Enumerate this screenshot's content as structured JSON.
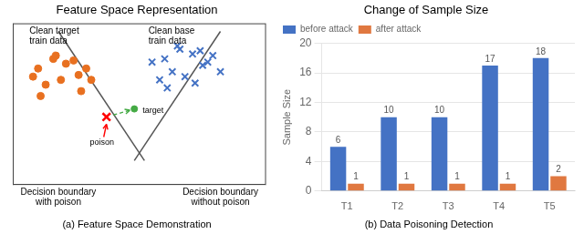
{
  "chart_data": [
    {
      "type": "scatter",
      "title": "Feature Space Representation",
      "caption": "(a) Feature Space Demonstration",
      "xlim": [
        0,
        1
      ],
      "ylim": [
        0,
        1
      ],
      "tick_labels": false,
      "grid": false,
      "series": [
        {
          "name": "Clean target\ntrain data",
          "type": "scatter",
          "marker": "circle",
          "color": "#E87020",
          "x": [
            0.1,
            0.16,
            0.21,
            0.26,
            0.13,
            0.19,
            0.29,
            0.08,
            0.17,
            0.24,
            0.31,
            0.11,
            0.27
          ],
          "y": [
            0.72,
            0.78,
            0.75,
            0.68,
            0.62,
            0.65,
            0.72,
            0.67,
            0.8,
            0.77,
            0.65,
            0.55,
            0.58
          ]
        },
        {
          "name": "Clean base\ntrain data",
          "type": "scatter",
          "marker": "x",
          "color": "#4472C4",
          "x": [
            0.6,
            0.66,
            0.71,
            0.75,
            0.63,
            0.68,
            0.77,
            0.58,
            0.65,
            0.72,
            0.79,
            0.61,
            0.74,
            0.55,
            0.82
          ],
          "y": [
            0.78,
            0.84,
            0.81,
            0.74,
            0.7,
            0.67,
            0.76,
            0.65,
            0.86,
            0.63,
            0.8,
            0.6,
            0.83,
            0.76,
            0.7
          ]
        },
        {
          "name": "Decision boundary\nwith poison",
          "type": "line",
          "line_style": "solid",
          "color": "#555555",
          "x": [
            0.18,
            0.52
          ],
          "y": [
            0.95,
            0.15
          ]
        },
        {
          "name": "Decision boundary\nwithout poison",
          "type": "line",
          "line_style": "solid",
          "color": "#555555",
          "x": [
            0.48,
            0.82
          ],
          "y": [
            0.15,
            0.95
          ]
        },
        {
          "name": "poison",
          "type": "scatter",
          "marker": "x",
          "color": "red",
          "x": [
            0.37
          ],
          "y": [
            0.42
          ]
        },
        {
          "name": "target",
          "type": "scatter",
          "marker": "circle",
          "color": "#44AA44",
          "x": [
            0.48
          ],
          "y": [
            0.47
          ]
        }
      ]
    },
    {
      "type": "bar",
      "title": "Change of Sample Size",
      "caption": "(b) Data Poisoning Detection",
      "categories": [
        "T1",
        "T2",
        "T3",
        "T4",
        "T5"
      ],
      "series": [
        {
          "name": "before attack",
          "color": "#4472C4",
          "values": [
            6,
            10,
            10,
            17,
            18
          ]
        },
        {
          "name": "after attack",
          "color": "#E07840",
          "values": [
            1,
            1,
            1,
            1,
            2
          ]
        }
      ],
      "ylabel": "Sample Size",
      "ylim": [
        0,
        20
      ],
      "yticks": [
        0,
        4,
        8,
        12,
        16,
        20
      ],
      "grid": true,
      "legend": "upper left",
      "data_labels": true
    }
  ]
}
